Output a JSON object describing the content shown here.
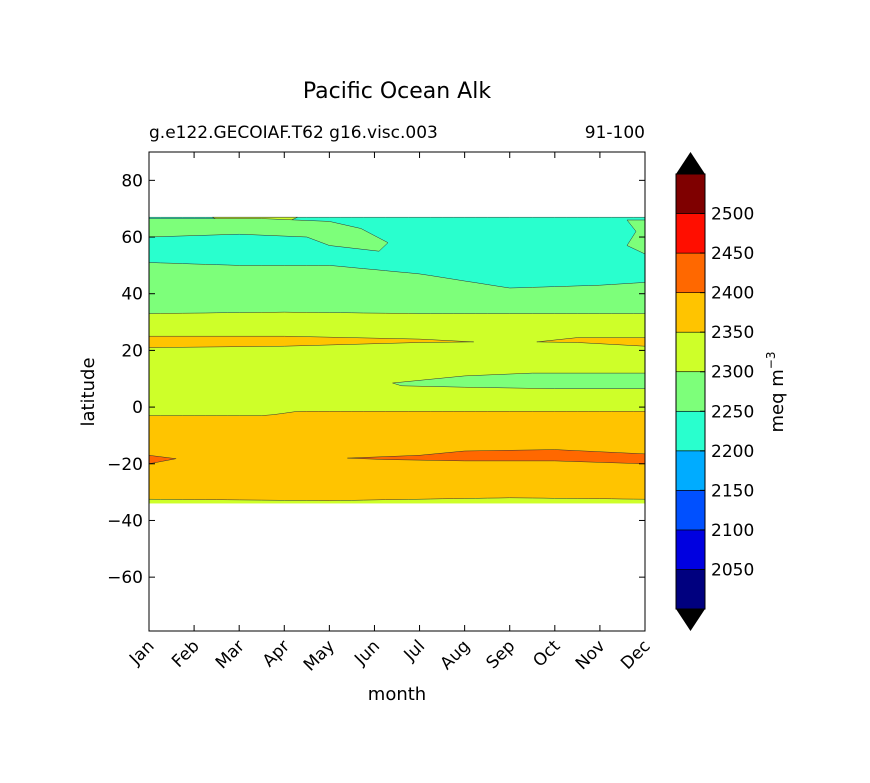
{
  "chart_data": {
    "type": "heatmap",
    "title": "Pacific Ocean Alk",
    "subtitle_left": "g.e122.GECOIAF.T62 g16.visc.003",
    "subtitle_right": "91-100",
    "xlabel": "month",
    "ylabel": "latitude",
    "x_ticks": [
      "Jan",
      "Feb",
      "Mar",
      "Apr",
      "May",
      "Jun",
      "Jul",
      "Aug",
      "Sep",
      "Oct",
      "Nov",
      "Dec"
    ],
    "y_ticks": [
      80,
      60,
      40,
      20,
      0,
      -20,
      -40,
      -60
    ],
    "y_tick_labels": [
      "80",
      "60",
      "40",
      "20",
      "0",
      "−20",
      "−40",
      "−60"
    ],
    "ylim": [
      -79,
      90
    ],
    "data_lat_range": [
      -34,
      67
    ],
    "colorbar": {
      "label": "meq m",
      "label_exponent": "−3",
      "levels": [
        2000,
        2050,
        2100,
        2150,
        2200,
        2250,
        2300,
        2350,
        2400,
        2450,
        2500,
        2550
      ],
      "tick_labels": [
        "2050",
        "2100",
        "2150",
        "2200",
        "2250",
        "2300",
        "2350",
        "2400",
        "2450",
        "2500"
      ],
      "colors": [
        "#00007f",
        "#0000e0",
        "#0050ff",
        "#00acff",
        "#29ffce",
        "#7dff7a",
        "#ceff29",
        "#ffc400",
        "#ff6800",
        "#ff0e00",
        "#7f0000"
      ],
      "extend_low_color": "#000000",
      "extend_high_color": "#000000"
    },
    "bands": [
      {
        "range": "2200-2250",
        "color": "#29ffce",
        "region": "north of ~45N, mid-year (Jun-Nov) and patches near Jan/Dec at 60-64N"
      },
      {
        "range": "2250-2300",
        "color": "#7dff7a",
        "region": "~33N to ~50N all year; ~6-12N from Jul to Dec"
      },
      {
        "range": "2300-2350",
        "color": "#ceff29",
        "region": "~-2 to ~33N; 64-67N in Feb-Apr; ~-33 to -34"
      },
      {
        "range": "2350-2400",
        "color": "#ffc400",
        "region": "~-33 to ~-2; thin band ~21-25N"
      },
      {
        "range": "2400-2450",
        "color": "#ff6800",
        "region": "~-15 to -19 from Jun to Dec; patch near Jan at -18"
      }
    ]
  }
}
